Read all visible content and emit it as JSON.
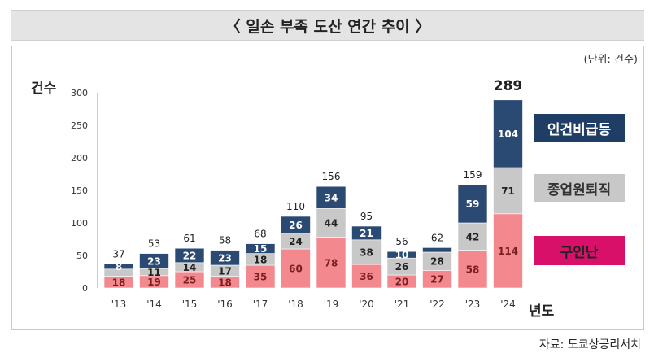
{
  "header": {
    "title": "〈 일손 부족 도산 연간 추이 〉"
  },
  "unit_note": "(단위: 건수)",
  "source": "자료: 도쿄상공리서치",
  "colors": {
    "top": "#2b4a73",
    "middle": "#c8c8c8",
    "bottom": "#f3898f",
    "legend_bottom": "#d9106a"
  },
  "chart_data": {
    "type": "bar",
    "stacked": true,
    "ylabel": "건수",
    "xlabel": "년도",
    "ylim": [
      0,
      300
    ],
    "yticks": [
      "0",
      "50",
      "100",
      "150",
      "200",
      "250",
      "300"
    ],
    "categories": [
      "'13",
      "'14",
      "'15",
      "'16",
      "'17",
      "'18",
      "'19",
      "'20",
      "'21",
      "'22",
      "'23",
      "'24"
    ],
    "series": [
      {
        "name": "구인난",
        "values": [
          18,
          19,
          25,
          18,
          35,
          60,
          78,
          36,
          20,
          27,
          58,
          114
        ]
      },
      {
        "name": "종업원퇴직",
        "values": [
          11,
          11,
          14,
          17,
          18,
          24,
          44,
          38,
          26,
          28,
          42,
          71
        ]
      },
      {
        "name": "인건비급등",
        "values": [
          8,
          23,
          22,
          23,
          15,
          26,
          34,
          21,
          10,
          7,
          59,
          104
        ]
      }
    ],
    "totals": [
      "37",
      "53",
      "61",
      "58",
      "68",
      "110",
      "156",
      "95",
      "56",
      "62",
      "159",
      "289"
    ],
    "segment_labels": [
      [
        "18",
        "19",
        "25",
        "18",
        "35",
        "60",
        "78",
        "36",
        "20",
        "27",
        "58",
        "114"
      ],
      [
        "",
        "11",
        "14",
        "17",
        "18",
        "24",
        "44",
        "38",
        "26",
        "28",
        "42",
        "71"
      ],
      [
        "8",
        "23",
        "22",
        "23",
        "15",
        "26",
        "34",
        "21",
        "10",
        "",
        "59",
        "104"
      ]
    ]
  }
}
